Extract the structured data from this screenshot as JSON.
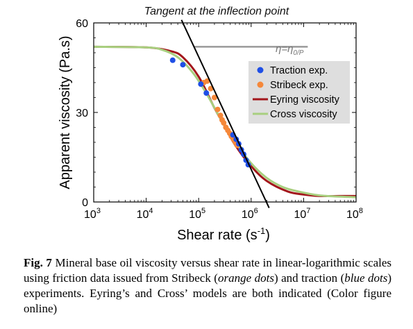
{
  "chart_data": {
    "type": "scatter",
    "title": "",
    "xlabel": "Shear rate (s",
    "xlabel_sup": "-1",
    "xlabel_close": ")",
    "ylabel": "Apparent viscosity (Pa.s)",
    "x_scale": "log",
    "xlim": [
      1000,
      100000000
    ],
    "ylim": [
      0,
      60
    ],
    "x_ticks": [
      {
        "value": 1000,
        "base": "10",
        "exp": "3"
      },
      {
        "value": 10000,
        "base": "10",
        "exp": "4"
      },
      {
        "value": 100000,
        "base": "10",
        "exp": "5"
      },
      {
        "value": 1000000,
        "base": "10",
        "exp": "6"
      },
      {
        "value": 10000000,
        "base": "10",
        "exp": "7"
      },
      {
        "value": 100000000,
        "base": "10",
        "exp": "8"
      }
    ],
    "y_ticks": [
      {
        "value": 0,
        "label": "0"
      },
      {
        "value": 30,
        "label": "30"
      },
      {
        "value": 60,
        "label": "60"
      }
    ],
    "grid": false,
    "legend_position": "right",
    "annotations": {
      "tangent_label": "Tangent at the inflection point",
      "plateau_label_main": "η=η",
      "plateau_label_sub": "0/P"
    },
    "plateau_line": {
      "y": 52,
      "x_start": 80000,
      "x_end": 12000000,
      "color": "#999999"
    },
    "tangent_line": {
      "x_start": 50000,
      "y_start": 60,
      "x_end": 1950000,
      "y_end": 0,
      "color": "#000000"
    },
    "series": [
      {
        "name": "Traction exp.",
        "kind": "points",
        "color": "#1f4fe6",
        "x": [
          32000,
          50000,
          110000,
          140000,
          450000,
          520000,
          580000,
          650000,
          720000,
          800000,
          880000
        ],
        "y": [
          47.5,
          46,
          39.5,
          36.5,
          22.5,
          21,
          19.5,
          17.5,
          16,
          14,
          12.5
        ]
      },
      {
        "name": "Stribeck exp.",
        "kind": "points",
        "color": "#f5883a",
        "x": [
          125000,
          145000,
          170000,
          200000,
          230000,
          260000,
          280000,
          300000,
          330000,
          360000,
          390000,
          420000,
          460000,
          500000,
          540000
        ],
        "y": [
          40,
          40.5,
          38,
          35,
          31,
          29,
          27.5,
          26.5,
          25,
          24,
          23,
          22,
          21,
          20,
          19
        ]
      },
      {
        "name": "Eyring viscosity",
        "kind": "curve",
        "color": "#a3161b",
        "x": [
          1000,
          10000,
          30000,
          50000,
          100000,
          200000,
          300000,
          500000,
          1000000,
          2000000,
          5000000,
          10000000,
          20000000,
          50000000,
          100000000
        ],
        "y": [
          52,
          51.8,
          50.5,
          48.5,
          42,
          31.5,
          26,
          19,
          12,
          7,
          3.5,
          2.5,
          2,
          2,
          2
        ]
      },
      {
        "name": "Cross viscosity",
        "kind": "curve",
        "color": "#a8cf7f",
        "x": [
          1000,
          10000,
          20000,
          40000,
          80000,
          150000,
          300000,
          500000,
          1000000,
          2000000,
          4000000,
          8000000,
          20000000,
          50000000,
          100000000
        ],
        "y": [
          52,
          51.8,
          51,
          48.5,
          43,
          35.5,
          26,
          20,
          13,
          8,
          5,
          3.5,
          2.2,
          1.8,
          1.6
        ]
      }
    ]
  },
  "caption": {
    "label": "Fig. 7",
    "text_1": " Mineral base oil viscosity versus shear rate in linear-logarithmic scales using friction data issued from Stribeck (",
    "orange_dots": "orange dots",
    "text_2": ") and traction (",
    "blue_dots": "blue dots",
    "text_3": ") experiments. Eyring’s and Cross’ models are both indicated (Color figure online)"
  }
}
